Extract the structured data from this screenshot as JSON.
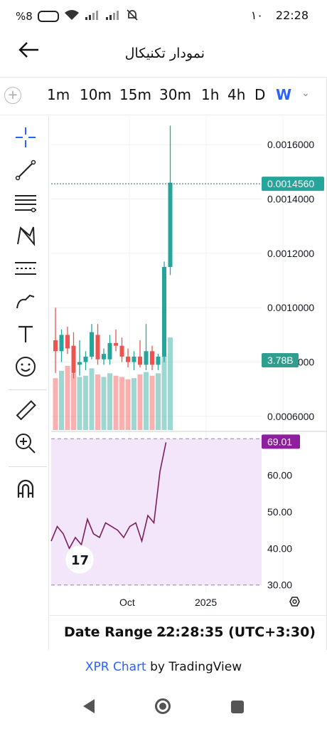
{
  "status_bar": {
    "battery": "%8",
    "time": "22:28",
    "notif": "١٠"
  },
  "header": {
    "title": "نمودار تکنیکال",
    "back_icon": "arrow-left-icon"
  },
  "timeframes": [
    {
      "label": "1m",
      "active": false
    },
    {
      "label": "10m",
      "active": false
    },
    {
      "label": "15m",
      "active": false
    },
    {
      "label": "30m",
      "active": false
    },
    {
      "label": "1h",
      "active": false
    },
    {
      "label": "4h",
      "active": false
    },
    {
      "label": "D",
      "active": false
    },
    {
      "label": "W",
      "active": true
    }
  ],
  "tools": [
    "crosshair-icon",
    "trendline-icon",
    "fib-retracement-icon",
    "pattern-icon",
    "prediction-icon",
    "brush-icon",
    "text-icon",
    "emoji-icon",
    "ruler-icon",
    "zoom-in-icon",
    "magnet-icon"
  ],
  "colors": {
    "up": "#26a69a",
    "down": "#ef5350",
    "rsi_line": "#7b1f5a",
    "rsi_fill": "#f3e6fb",
    "rsi_badge": "#8e1e9e",
    "accent": "#2962ff"
  },
  "chart_data": [
    {
      "type": "candlestick",
      "title": "",
      "y_ticks": [
        "0.0016000",
        "0.0014000",
        "0.0012000",
        "0.0010000",
        "0.0008000",
        "0.0006000"
      ],
      "ylim": [
        0.00055,
        0.0017
      ],
      "last_price": "0.0014560",
      "volume_badge": "3.78B",
      "x_ticks": [
        "Oct",
        "2025"
      ],
      "candles": [
        {
          "o": 0.00088,
          "h": 0.001,
          "l": 0.00076,
          "c": 0.00084
        },
        {
          "o": 0.00084,
          "h": 0.00092,
          "l": 0.0008,
          "c": 0.0009
        },
        {
          "o": 0.0009,
          "h": 0.00093,
          "l": 0.00083,
          "c": 0.00085
        },
        {
          "o": 0.00086,
          "h": 0.00091,
          "l": 0.00074,
          "c": 0.00076
        },
        {
          "o": 0.00079,
          "h": 0.00088,
          "l": 0.00075,
          "c": 0.0008
        },
        {
          "o": 0.0008,
          "h": 0.00084,
          "l": 0.00077,
          "c": 0.00082
        },
        {
          "o": 0.00082,
          "h": 0.00094,
          "l": 0.00081,
          "c": 0.00091
        },
        {
          "o": 0.0009,
          "h": 0.00094,
          "l": 0.00079,
          "c": 0.00081
        },
        {
          "o": 0.00081,
          "h": 0.00085,
          "l": 0.00079,
          "c": 0.00083
        },
        {
          "o": 0.00081,
          "h": 0.0009,
          "l": 0.00079,
          "c": 0.00087
        },
        {
          "o": 0.00087,
          "h": 0.00092,
          "l": 0.00084,
          "c": 0.00086
        },
        {
          "o": 0.00086,
          "h": 0.00089,
          "l": 0.0008,
          "c": 0.00082
        },
        {
          "o": 0.00082,
          "h": 0.00085,
          "l": 0.00078,
          "c": 0.0008
        },
        {
          "o": 0.0008,
          "h": 0.00084,
          "l": 0.00077,
          "c": 0.00082
        },
        {
          "o": 0.00082,
          "h": 0.00088,
          "l": 0.00078,
          "c": 0.00079
        },
        {
          "o": 0.00079,
          "h": 0.00094,
          "l": 0.00077,
          "c": 0.00084
        },
        {
          "o": 0.00084,
          "h": 0.00086,
          "l": 0.00077,
          "c": 0.00079
        },
        {
          "o": 0.00079,
          "h": 0.00083,
          "l": 0.00077,
          "c": 0.00082
        },
        {
          "o": 0.00082,
          "h": 0.00117,
          "l": 0.0008,
          "c": 0.00115
        },
        {
          "o": 0.00115,
          "h": 0.00167,
          "l": 0.00112,
          "c": 0.00146
        }
      ],
      "volume": [
        0.42,
        0.48,
        0.52,
        0.46,
        0.43,
        0.44,
        0.5,
        0.45,
        0.43,
        0.46,
        0.44,
        0.43,
        0.41,
        0.42,
        0.45,
        0.47,
        0.44,
        0.46,
        0.6,
        0.75
      ]
    },
    {
      "type": "line",
      "title": "",
      "y_ticks": [
        "60.00",
        "50.00",
        "40.00",
        "30.00"
      ],
      "ylim": [
        28,
        72
      ],
      "last_value": "69.01",
      "band": [
        30,
        70
      ],
      "values": [
        42,
        46,
        44,
        40,
        43,
        41,
        48,
        44,
        43,
        47,
        46,
        45,
        43,
        46,
        47,
        42,
        49,
        47,
        61,
        69.01
      ]
    }
  ],
  "footer": {
    "date_range": "Date Range",
    "date_chev": "⌄",
    "clock": "22:28:35 (UTC+3:30)",
    "settings_icon": "gear-icon"
  },
  "credit": {
    "brand": "XPR Chart",
    "by": " by TradingView"
  }
}
